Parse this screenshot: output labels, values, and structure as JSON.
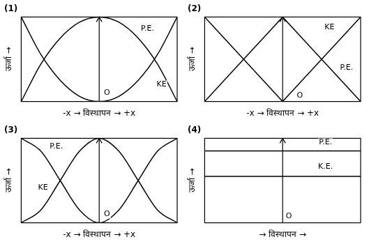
{
  "chart_data": [
    {
      "type": "spline",
      "title": "(1)",
      "x_label": "-x → विस्थापन → +x",
      "y_label": "ऊर्जा →",
      "x": [
        -1,
        -0.75,
        -0.5,
        -0.25,
        0,
        0.25,
        0.5,
        0.75,
        1
      ],
      "series": [
        {
          "color": "#000000",
          "values": [
            1,
            0.56,
            0.25,
            0.06,
            0,
            0.06,
            0.25,
            0.56,
            1
          ]
        },
        {
          "color": "#000000",
          "values": [
            0,
            0.44,
            0.75,
            0.94,
            1,
            0.94,
            0.75,
            0.44,
            0
          ]
        }
      ],
      "xlim": [
        -1,
        1
      ],
      "ylim": [
        0,
        1
      ],
      "tick_labels": false,
      "grid": false,
      "annotations": [
        {
          "text": "P.E.",
          "x": 0.62,
          "y": 0.86
        },
        {
          "text": "KE",
          "x": 0.8,
          "y": 0.2
        },
        {
          "text": "O",
          "x": 0.1,
          "y": 0.1
        }
      ]
    },
    {
      "type": "line",
      "title": "(2)",
      "x_label": "-x → विस्थापन → +x",
      "y_label": "ऊर्जा →",
      "x": [
        -1,
        -0.75,
        -0.5,
        -0.25,
        0,
        0.25,
        0.5,
        0.75,
        1
      ],
      "series": [
        {
          "color": "#000000",
          "values": [
            1,
            0.75,
            0.5,
            0.25,
            0,
            0.25,
            0.5,
            0.75,
            1
          ]
        },
        {
          "color": "#000000",
          "values": [
            0,
            0.25,
            0.5,
            0.75,
            1,
            0.75,
            0.5,
            0.25,
            0
          ]
        }
      ],
      "xlim": [
        -1,
        1
      ],
      "ylim": [
        0,
        1
      ],
      "tick_labels": false,
      "grid": false,
      "annotations": [
        {
          "text": "KE",
          "x": 0.6,
          "y": 0.88
        },
        {
          "text": "P.E.",
          "x": 0.82,
          "y": 0.4
        },
        {
          "text": "O",
          "x": 0.22,
          "y": 0.07
        }
      ]
    },
    {
      "type": "spline",
      "title": "(3)",
      "x_label": "-x → विस्थापन → +x",
      "y_label": "ऊर्जा →",
      "x": [
        -1,
        -0.75,
        -0.5,
        -0.25,
        0,
        0.25,
        0.5,
        0.75,
        1
      ],
      "series": [
        {
          "color": "#000000",
          "values": [
            1,
            0.85,
            0.5,
            0.15,
            0,
            0.15,
            0.5,
            0.85,
            1
          ]
        },
        {
          "color": "#000000",
          "values": [
            0,
            0.15,
            0.5,
            0.85,
            1,
            0.85,
            0.5,
            0.15,
            0
          ]
        }
      ],
      "xlim": [
        -1,
        1
      ],
      "ylim": [
        0,
        1
      ],
      "tick_labels": false,
      "grid": false,
      "annotations": [
        {
          "text": "P.E.",
          "x": -0.55,
          "y": 0.9
        },
        {
          "text": "KE",
          "x": -0.72,
          "y": 0.42
        },
        {
          "text": "O",
          "x": 0.1,
          "y": 0.1
        }
      ]
    },
    {
      "type": "line",
      "title": "(4)",
      "x_label": "→ विस्थापन →",
      "y_label": "ऊर्जा →",
      "x": [
        -1,
        -0.75,
        -0.5,
        -0.25,
        0,
        0.25,
        0.5,
        0.75,
        1
      ],
      "series": [
        {
          "color": "#000000",
          "values": [
            0.85,
            0.85,
            0.85,
            0.85,
            0.85,
            0.85,
            0.85,
            0.85,
            0.85
          ]
        },
        {
          "color": "#000000",
          "values": [
            0.55,
            0.55,
            0.55,
            0.55,
            0.55,
            0.55,
            0.55,
            0.55,
            0.55
          ]
        }
      ],
      "xlim": [
        -1,
        1
      ],
      "ylim": [
        0,
        1
      ],
      "tick_labels": false,
      "grid": false,
      "annotations": [
        {
          "text": "P.E.",
          "x": 0.55,
          "y": 0.95
        },
        {
          "text": "K.E.",
          "x": 0.55,
          "y": 0.66
        },
        {
          "text": "O",
          "x": 0.08,
          "y": 0.08
        }
      ]
    }
  ]
}
